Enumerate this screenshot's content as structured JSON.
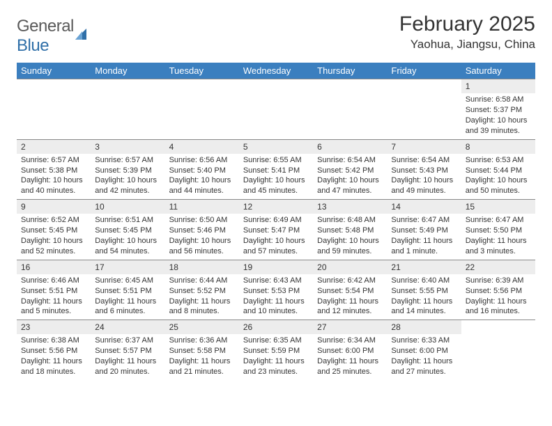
{
  "brand": {
    "word1": "General",
    "word2": "Blue"
  },
  "header": {
    "title": "February 2025",
    "location": "Yaohua, Jiangsu, China"
  },
  "colors": {
    "header_bg": "#3b7fbf",
    "header_text": "#ffffff",
    "daynum_bg": "#ededed",
    "border": "#888888",
    "brand_gray": "#5a5a5a",
    "brand_blue": "#2f6fa8"
  },
  "weekdays": [
    "Sunday",
    "Monday",
    "Tuesday",
    "Wednesday",
    "Thursday",
    "Friday",
    "Saturday"
  ],
  "weeks": [
    [
      {
        "empty": true
      },
      {
        "empty": true
      },
      {
        "empty": true
      },
      {
        "empty": true
      },
      {
        "empty": true
      },
      {
        "empty": true
      },
      {
        "num": "1",
        "sunrise": "Sunrise: 6:58 AM",
        "sunset": "Sunset: 5:37 PM",
        "day1": "Daylight: 10 hours",
        "day2": "and 39 minutes."
      }
    ],
    [
      {
        "num": "2",
        "sunrise": "Sunrise: 6:57 AM",
        "sunset": "Sunset: 5:38 PM",
        "day1": "Daylight: 10 hours",
        "day2": "and 40 minutes."
      },
      {
        "num": "3",
        "sunrise": "Sunrise: 6:57 AM",
        "sunset": "Sunset: 5:39 PM",
        "day1": "Daylight: 10 hours",
        "day2": "and 42 minutes."
      },
      {
        "num": "4",
        "sunrise": "Sunrise: 6:56 AM",
        "sunset": "Sunset: 5:40 PM",
        "day1": "Daylight: 10 hours",
        "day2": "and 44 minutes."
      },
      {
        "num": "5",
        "sunrise": "Sunrise: 6:55 AM",
        "sunset": "Sunset: 5:41 PM",
        "day1": "Daylight: 10 hours",
        "day2": "and 45 minutes."
      },
      {
        "num": "6",
        "sunrise": "Sunrise: 6:54 AM",
        "sunset": "Sunset: 5:42 PM",
        "day1": "Daylight: 10 hours",
        "day2": "and 47 minutes."
      },
      {
        "num": "7",
        "sunrise": "Sunrise: 6:54 AM",
        "sunset": "Sunset: 5:43 PM",
        "day1": "Daylight: 10 hours",
        "day2": "and 49 minutes."
      },
      {
        "num": "8",
        "sunrise": "Sunrise: 6:53 AM",
        "sunset": "Sunset: 5:44 PM",
        "day1": "Daylight: 10 hours",
        "day2": "and 50 minutes."
      }
    ],
    [
      {
        "num": "9",
        "sunrise": "Sunrise: 6:52 AM",
        "sunset": "Sunset: 5:45 PM",
        "day1": "Daylight: 10 hours",
        "day2": "and 52 minutes."
      },
      {
        "num": "10",
        "sunrise": "Sunrise: 6:51 AM",
        "sunset": "Sunset: 5:45 PM",
        "day1": "Daylight: 10 hours",
        "day2": "and 54 minutes."
      },
      {
        "num": "11",
        "sunrise": "Sunrise: 6:50 AM",
        "sunset": "Sunset: 5:46 PM",
        "day1": "Daylight: 10 hours",
        "day2": "and 56 minutes."
      },
      {
        "num": "12",
        "sunrise": "Sunrise: 6:49 AM",
        "sunset": "Sunset: 5:47 PM",
        "day1": "Daylight: 10 hours",
        "day2": "and 57 minutes."
      },
      {
        "num": "13",
        "sunrise": "Sunrise: 6:48 AM",
        "sunset": "Sunset: 5:48 PM",
        "day1": "Daylight: 10 hours",
        "day2": "and 59 minutes."
      },
      {
        "num": "14",
        "sunrise": "Sunrise: 6:47 AM",
        "sunset": "Sunset: 5:49 PM",
        "day1": "Daylight: 11 hours",
        "day2": "and 1 minute."
      },
      {
        "num": "15",
        "sunrise": "Sunrise: 6:47 AM",
        "sunset": "Sunset: 5:50 PM",
        "day1": "Daylight: 11 hours",
        "day2": "and 3 minutes."
      }
    ],
    [
      {
        "num": "16",
        "sunrise": "Sunrise: 6:46 AM",
        "sunset": "Sunset: 5:51 PM",
        "day1": "Daylight: 11 hours",
        "day2": "and 5 minutes."
      },
      {
        "num": "17",
        "sunrise": "Sunrise: 6:45 AM",
        "sunset": "Sunset: 5:51 PM",
        "day1": "Daylight: 11 hours",
        "day2": "and 6 minutes."
      },
      {
        "num": "18",
        "sunrise": "Sunrise: 6:44 AM",
        "sunset": "Sunset: 5:52 PM",
        "day1": "Daylight: 11 hours",
        "day2": "and 8 minutes."
      },
      {
        "num": "19",
        "sunrise": "Sunrise: 6:43 AM",
        "sunset": "Sunset: 5:53 PM",
        "day1": "Daylight: 11 hours",
        "day2": "and 10 minutes."
      },
      {
        "num": "20",
        "sunrise": "Sunrise: 6:42 AM",
        "sunset": "Sunset: 5:54 PM",
        "day1": "Daylight: 11 hours",
        "day2": "and 12 minutes."
      },
      {
        "num": "21",
        "sunrise": "Sunrise: 6:40 AM",
        "sunset": "Sunset: 5:55 PM",
        "day1": "Daylight: 11 hours",
        "day2": "and 14 minutes."
      },
      {
        "num": "22",
        "sunrise": "Sunrise: 6:39 AM",
        "sunset": "Sunset: 5:56 PM",
        "day1": "Daylight: 11 hours",
        "day2": "and 16 minutes."
      }
    ],
    [
      {
        "num": "23",
        "sunrise": "Sunrise: 6:38 AM",
        "sunset": "Sunset: 5:56 PM",
        "day1": "Daylight: 11 hours",
        "day2": "and 18 minutes."
      },
      {
        "num": "24",
        "sunrise": "Sunrise: 6:37 AM",
        "sunset": "Sunset: 5:57 PM",
        "day1": "Daylight: 11 hours",
        "day2": "and 20 minutes."
      },
      {
        "num": "25",
        "sunrise": "Sunrise: 6:36 AM",
        "sunset": "Sunset: 5:58 PM",
        "day1": "Daylight: 11 hours",
        "day2": "and 21 minutes."
      },
      {
        "num": "26",
        "sunrise": "Sunrise: 6:35 AM",
        "sunset": "Sunset: 5:59 PM",
        "day1": "Daylight: 11 hours",
        "day2": "and 23 minutes."
      },
      {
        "num": "27",
        "sunrise": "Sunrise: 6:34 AM",
        "sunset": "Sunset: 6:00 PM",
        "day1": "Daylight: 11 hours",
        "day2": "and 25 minutes."
      },
      {
        "num": "28",
        "sunrise": "Sunrise: 6:33 AM",
        "sunset": "Sunset: 6:00 PM",
        "day1": "Daylight: 11 hours",
        "day2": "and 27 minutes."
      },
      {
        "empty": true
      }
    ]
  ]
}
